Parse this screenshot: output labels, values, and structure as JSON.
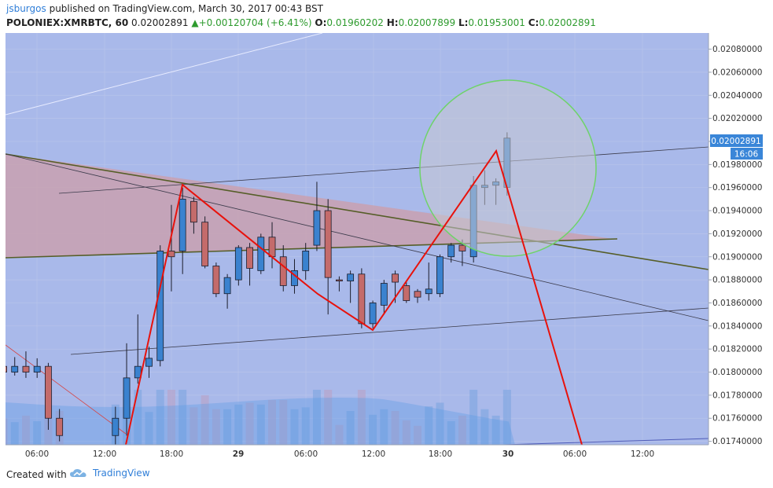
{
  "header": {
    "author": "jsburgos",
    "published_text": "published on TradingView.com, March 30, 2017 00:43 BST",
    "symbol": "POLONIEX:XMRBTC, 60",
    "last": "0.02002891",
    "change": "+0.00120704 (+6.41%)",
    "o_label": "O:",
    "o_value": "0.01960202",
    "h_label": "H:",
    "h_value": "0.02007899",
    "l_label": "L:",
    "l_value": "0.01953001",
    "c_label": "C:",
    "c_value": "0.02002891"
  },
  "footer": {
    "created_with": "Created with",
    "brand": "TradingView"
  },
  "colors": {
    "background": "#a9b9ea",
    "up": "#3a82cf",
    "down": "#c46b6b",
    "pattern": "#e8120c",
    "circle": "#6fd36a",
    "price_tag": "#3a86d8"
  },
  "chart_data": {
    "type": "candlestick",
    "price_tag": "0.02002891",
    "time_tag": "16:06",
    "x_ticks": [
      "06:00",
      "12:00",
      "18:00",
      "29",
      "06:00",
      "12:00",
      "18:00",
      "30",
      "06:00",
      "12:00"
    ],
    "y_ticks": [
      "0.02080000",
      "0.02060000",
      "0.02040000",
      "0.02020000",
      "0.02000000",
      "0.01980000",
      "0.01960000",
      "0.01940000",
      "0.01920000",
      "0.01900000",
      "0.01880000",
      "0.01860000",
      "0.01840000",
      "0.01820000",
      "0.01800000",
      "0.01780000",
      "0.01760000",
      "0.01740000"
    ],
    "ylim": [
      0.01737,
      0.02094
    ],
    "candles": [
      {
        "i": 0,
        "o": 0.01805,
        "h": 0.01815,
        "l": 0.01795,
        "c": 0.018
      },
      {
        "i": 1,
        "o": 0.018,
        "h": 0.01813,
        "l": 0.01797,
        "c": 0.01805
      },
      {
        "i": 2,
        "o": 0.01805,
        "h": 0.01818,
        "l": 0.01795,
        "c": 0.018
      },
      {
        "i": 3,
        "o": 0.018,
        "h": 0.01812,
        "l": 0.01795,
        "c": 0.01805
      },
      {
        "i": 4,
        "o": 0.01805,
        "h": 0.01808,
        "l": 0.0175,
        "c": 0.0176
      },
      {
        "i": 5,
        "o": 0.0176,
        "h": 0.01768,
        "l": 0.0174,
        "c": 0.01745
      },
      {
        "i": 10,
        "o": 0.01745,
        "h": 0.0177,
        "l": 0.01735,
        "c": 0.0176
      },
      {
        "i": 11,
        "o": 0.0176,
        "h": 0.01825,
        "l": 0.01745,
        "c": 0.01795
      },
      {
        "i": 12,
        "o": 0.01795,
        "h": 0.0185,
        "l": 0.0179,
        "c": 0.01805
      },
      {
        "i": 13,
        "o": 0.01805,
        "h": 0.01822,
        "l": 0.01795,
        "c": 0.01812
      },
      {
        "i": 14,
        "o": 0.0181,
        "h": 0.0191,
        "l": 0.01805,
        "c": 0.01905
      },
      {
        "i": 15,
        "o": 0.01905,
        "h": 0.01945,
        "l": 0.0187,
        "c": 0.019
      },
      {
        "i": 16,
        "o": 0.01905,
        "h": 0.0196,
        "l": 0.01885,
        "c": 0.0195
      },
      {
        "i": 17,
        "o": 0.01948,
        "h": 0.01952,
        "l": 0.0192,
        "c": 0.0193
      },
      {
        "i": 18,
        "o": 0.0193,
        "h": 0.01935,
        "l": 0.0189,
        "c": 0.01892
      },
      {
        "i": 19,
        "o": 0.01892,
        "h": 0.01895,
        "l": 0.01865,
        "c": 0.01868
      },
      {
        "i": 20,
        "o": 0.01868,
        "h": 0.01885,
        "l": 0.01855,
        "c": 0.01882
      },
      {
        "i": 21,
        "o": 0.0188,
        "h": 0.0191,
        "l": 0.01875,
        "c": 0.01908
      },
      {
        "i": 22,
        "o": 0.01908,
        "h": 0.01912,
        "l": 0.01875,
        "c": 0.0189
      },
      {
        "i": 23,
        "o": 0.01888,
        "h": 0.0192,
        "l": 0.01885,
        "c": 0.01917
      },
      {
        "i": 24,
        "o": 0.01917,
        "h": 0.0193,
        "l": 0.0189,
        "c": 0.019
      },
      {
        "i": 25,
        "o": 0.019,
        "h": 0.0191,
        "l": 0.0187,
        "c": 0.01875
      },
      {
        "i": 26,
        "o": 0.01875,
        "h": 0.01898,
        "l": 0.01868,
        "c": 0.01888
      },
      {
        "i": 27,
        "o": 0.01888,
        "h": 0.01912,
        "l": 0.0188,
        "c": 0.01905
      },
      {
        "i": 28,
        "o": 0.0191,
        "h": 0.01965,
        "l": 0.01905,
        "c": 0.0194
      },
      {
        "i": 29,
        "o": 0.0194,
        "h": 0.0195,
        "l": 0.0185,
        "c": 0.01882
      },
      {
        "i": 30,
        "o": 0.0188,
        "h": 0.01883,
        "l": 0.0187,
        "c": 0.01879
      },
      {
        "i": 31,
        "o": 0.01879,
        "h": 0.01888,
        "l": 0.0186,
        "c": 0.01885
      },
      {
        "i": 32,
        "o": 0.01885,
        "h": 0.0189,
        "l": 0.01838,
        "c": 0.01842
      },
      {
        "i": 33,
        "o": 0.01842,
        "h": 0.01862,
        "l": 0.01838,
        "c": 0.0186
      },
      {
        "i": 34,
        "o": 0.01858,
        "h": 0.0188,
        "l": 0.0185,
        "c": 0.01877
      },
      {
        "i": 35,
        "o": 0.01885,
        "h": 0.01888,
        "l": 0.0186,
        "c": 0.01878
      },
      {
        "i": 36,
        "o": 0.01875,
        "h": 0.01878,
        "l": 0.0186,
        "c": 0.01862
      },
      {
        "i": 37,
        "o": 0.0187,
        "h": 0.01872,
        "l": 0.0186,
        "c": 0.01865
      },
      {
        "i": 38,
        "o": 0.01868,
        "h": 0.01895,
        "l": 0.01862,
        "c": 0.01872
      },
      {
        "i": 39,
        "o": 0.01868,
        "h": 0.01902,
        "l": 0.01865,
        "c": 0.019
      },
      {
        "i": 40,
        "o": 0.019,
        "h": 0.01912,
        "l": 0.01895,
        "c": 0.0191
      },
      {
        "i": 41,
        "o": 0.0191,
        "h": 0.01915,
        "l": 0.01892,
        "c": 0.01905
      },
      {
        "i": 42,
        "o": 0.019,
        "h": 0.0197,
        "l": 0.01895,
        "c": 0.01962
      },
      {
        "i": 43,
        "o": 0.0196,
        "h": 0.01975,
        "l": 0.01945,
        "c": 0.01962
      },
      {
        "i": 44,
        "o": 0.01962,
        "h": 0.01968,
        "l": 0.01945,
        "c": 0.01965
      },
      {
        "i": 45,
        "o": 0.01960202,
        "h": 0.02007899,
        "l": 0.01953001,
        "c": 0.02002891
      }
    ]
  }
}
